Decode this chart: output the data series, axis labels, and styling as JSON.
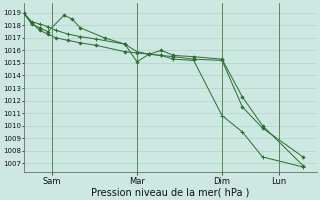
{
  "bg_color": "#cce8e0",
  "grid_color": "#a8cccc",
  "line_color": "#2d6b2d",
  "marker_color": "#2d6b2d",
  "day_line_color": "#4a7a4a",
  "xlabel": "Pression niveau de la mer( hPa )",
  "ylim": [
    1006.3,
    1019.8
  ],
  "yticks": [
    1007,
    1008,
    1009,
    1010,
    1011,
    1012,
    1013,
    1014,
    1015,
    1016,
    1017,
    1018,
    1019
  ],
  "xtick_labels": [
    "Sam",
    "Mar",
    "Dim",
    "Lun"
  ],
  "xtick_positions": [
    14,
    56,
    98,
    126
  ],
  "day_line_x": [
    14,
    56,
    98,
    126
  ],
  "series1_x": [
    0,
    4,
    8,
    12,
    20,
    24,
    28,
    40,
    50,
    56,
    62,
    68,
    74,
    84,
    98,
    108,
    118,
    138
  ],
  "series1_y": [
    1019.0,
    1018.1,
    1017.8,
    1017.5,
    1018.8,
    1018.5,
    1017.8,
    1017.0,
    1016.5,
    1015.1,
    1015.7,
    1016.0,
    1015.6,
    1015.5,
    1015.3,
    1012.3,
    1010.0,
    1006.8
  ],
  "series2_x": [
    0,
    4,
    8,
    12,
    16,
    22,
    28,
    36,
    50,
    56,
    62,
    68,
    74,
    84,
    98,
    108,
    118,
    138
  ],
  "series2_y": [
    1019.0,
    1018.2,
    1017.6,
    1017.3,
    1017.0,
    1016.8,
    1016.6,
    1016.4,
    1015.9,
    1015.8,
    1015.7,
    1015.6,
    1015.5,
    1015.3,
    1015.2,
    1011.5,
    1009.8,
    1007.5
  ],
  "series3_x": [
    0,
    4,
    8,
    12,
    16,
    22,
    28,
    36,
    50,
    56,
    62,
    68,
    74,
    84,
    98,
    108,
    118,
    138
  ],
  "series3_y": [
    1019.0,
    1018.3,
    1018.1,
    1017.9,
    1017.6,
    1017.3,
    1017.1,
    1016.9,
    1016.5,
    1015.9,
    1015.7,
    1015.6,
    1015.3,
    1015.2,
    1010.8,
    1009.5,
    1007.5,
    1006.7
  ],
  "xlim": [
    0,
    145
  ],
  "n_total": 140
}
